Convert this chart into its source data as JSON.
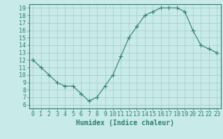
{
  "x": [
    0,
    1,
    2,
    3,
    4,
    5,
    6,
    7,
    8,
    9,
    10,
    11,
    12,
    13,
    14,
    15,
    16,
    17,
    18,
    19,
    20,
    21,
    22,
    23
  ],
  "y": [
    12,
    11,
    10,
    9,
    8.5,
    8.5,
    7.5,
    6.5,
    7,
    8.5,
    10,
    12.5,
    15,
    16.5,
    18,
    18.5,
    19,
    19,
    19,
    18.5,
    16,
    14,
    13.5,
    13
  ],
  "line_color": "#2e7d6e",
  "marker": "+",
  "marker_size": 4,
  "bg_color": "#c8eae8",
  "grid_color": "#a0ccc8",
  "xlabel": "Humidex (Indice chaleur)",
  "ylabel": "",
  "xlim": [
    -0.5,
    23.5
  ],
  "ylim": [
    5.5,
    19.5
  ],
  "yticks": [
    6,
    7,
    8,
    9,
    10,
    11,
    12,
    13,
    14,
    15,
    16,
    17,
    18,
    19
  ],
  "xticks": [
    0,
    1,
    2,
    3,
    4,
    5,
    6,
    7,
    8,
    9,
    10,
    11,
    12,
    13,
    14,
    15,
    16,
    17,
    18,
    19,
    20,
    21,
    22,
    23
  ],
  "axis_color": "#2e7d6e",
  "tick_color": "#2e7d6e",
  "label_fontsize": 7,
  "tick_fontsize": 6
}
